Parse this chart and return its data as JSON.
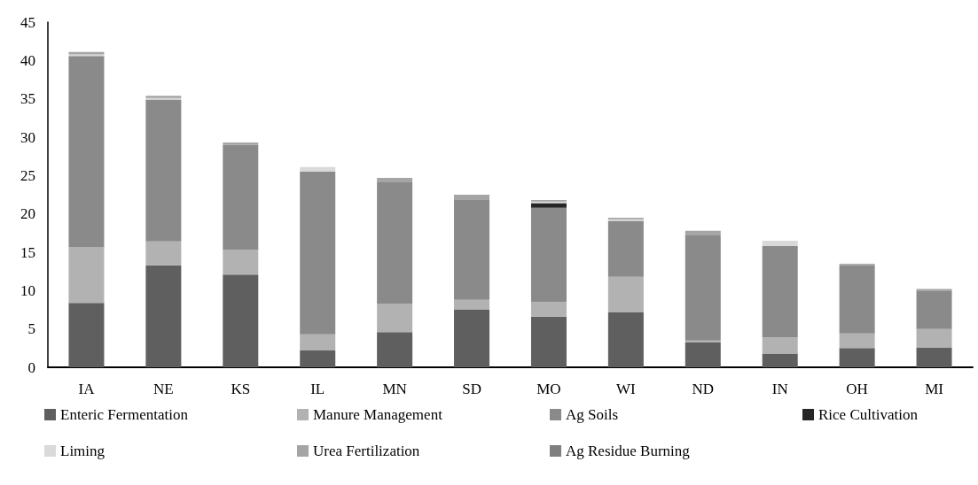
{
  "chart_data": {
    "type": "bar",
    "stacked": true,
    "categories": [
      "IA",
      "NE",
      "KS",
      "IL",
      "MN",
      "SD",
      "MO",
      "WI",
      "ND",
      "IN",
      "OH",
      "MI"
    ],
    "series": [
      {
        "name": "Enteric Fermentation",
        "color": "#5f5f5f",
        "values": [
          8.4,
          13.3,
          12.1,
          2.2,
          4.6,
          7.5,
          6.6,
          7.2,
          3.3,
          1.8,
          2.5,
          2.6
        ]
      },
      {
        "name": "Manure Management",
        "color": "#b2b2b2",
        "values": [
          7.3,
          3.1,
          3.2,
          2.1,
          3.7,
          1.3,
          1.9,
          4.6,
          0.2,
          2.1,
          1.9,
          2.4
        ]
      },
      {
        "name": "Ag Soils",
        "color": "#8a8a8a",
        "values": [
          24.9,
          18.5,
          13.7,
          21.2,
          15.9,
          13.1,
          12.3,
          7.3,
          13.7,
          11.9,
          8.9,
          5.0
        ]
      },
      {
        "name": "Rice Cultivation",
        "color": "#262626",
        "values": [
          0,
          0,
          0,
          0,
          0,
          0,
          0.6,
          0,
          0,
          0,
          0,
          0
        ]
      },
      {
        "name": "Liming",
        "color": "#d9d9d9",
        "values": [
          0.2,
          0.2,
          0,
          0.6,
          null,
          0,
          0.2,
          0.2,
          0,
          0.7,
          null,
          0
        ]
      },
      {
        "name": "Urea Fertilization",
        "color": "#a5a5a5",
        "values": [
          0.3,
          0.3,
          0.3,
          null,
          0.5,
          0.6,
          0.2,
          0.2,
          0.6,
          0,
          0.2,
          0.2
        ]
      },
      {
        "name": "Ag Residue Burning",
        "color": "#7f7f7f",
        "values": [
          0,
          0,
          0,
          0,
          0,
          0,
          0,
          0,
          0,
          0,
          0,
          0
        ]
      }
    ],
    "ylim": [
      0,
      45
    ],
    "yticks": [
      0,
      5,
      10,
      15,
      20,
      25,
      30,
      35,
      40,
      45
    ],
    "grid": false,
    "legend": "bottom"
  }
}
